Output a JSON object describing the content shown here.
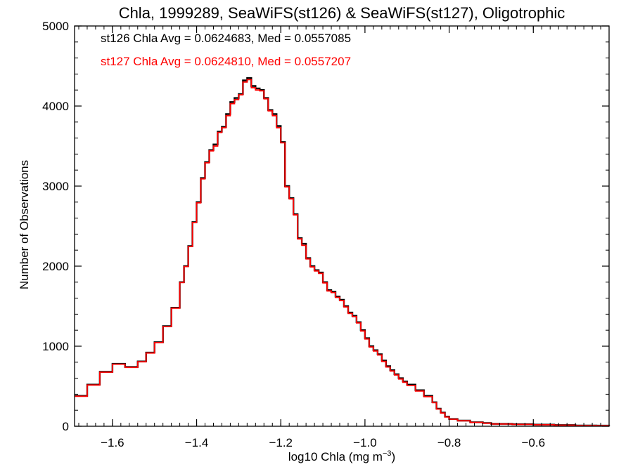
{
  "chart_data": {
    "type": "line",
    "title": "Chla, 1999289, SeaWiFS(st126) & SeaWiFS(st127), Oligotrophic",
    "xlabel_main": "log10 Chla (mg m",
    "xlabel_sup": "−3",
    "xlabel_close": ")",
    "ylabel": "Number of Observations",
    "xlim": [
      -1.69,
      -0.42
    ],
    "ylim": [
      0,
      5000
    ],
    "x_ticks": [
      -1.6,
      -1.4,
      -1.2,
      -1.0,
      -0.8,
      -0.6
    ],
    "x_tick_labels": [
      "−1.6",
      "−1.4",
      "−1.2",
      "−1.0",
      "−0.8",
      "−0.6"
    ],
    "y_ticks": [
      0,
      1000,
      2000,
      3000,
      4000,
      5000
    ],
    "y_tick_labels": [
      "0",
      "1000",
      "2000",
      "3000",
      "4000",
      "5000"
    ],
    "grid": false,
    "legend_placement": "top-left",
    "annotations": [
      {
        "text": "st126 Chla Avg = 0.0624683, Med = 0.0557085",
        "color": "#000000"
      },
      {
        "text": "st127 Chla Avg = 0.0624810, Med = 0.0557207",
        "color": "#ff0000"
      }
    ],
    "series": [
      {
        "color": "#000000",
        "x": [
          -1.69,
          -1.66,
          -1.63,
          -1.6,
          -1.57,
          -1.54,
          -1.52,
          -1.5,
          -1.48,
          -1.46,
          -1.44,
          -1.43,
          -1.42,
          -1.41,
          -1.4,
          -1.39,
          -1.38,
          -1.37,
          -1.36,
          -1.35,
          -1.34,
          -1.33,
          -1.32,
          -1.31,
          -1.3,
          -1.29,
          -1.28,
          -1.27,
          -1.26,
          -1.25,
          -1.24,
          -1.23,
          -1.22,
          -1.21,
          -1.2,
          -1.19,
          -1.18,
          -1.17,
          -1.16,
          -1.15,
          -1.14,
          -1.13,
          -1.12,
          -1.11,
          -1.1,
          -1.09,
          -1.08,
          -1.07,
          -1.06,
          -1.05,
          -1.04,
          -1.03,
          -1.02,
          -1.01,
          -1.0,
          -0.99,
          -0.98,
          -0.97,
          -0.96,
          -0.95,
          -0.94,
          -0.93,
          -0.92,
          -0.91,
          -0.9,
          -0.88,
          -0.86,
          -0.84,
          -0.83,
          -0.82,
          -0.81,
          -0.8,
          -0.78,
          -0.75,
          -0.72,
          -0.7,
          -0.65,
          -0.6,
          -0.55,
          -0.5,
          -0.45,
          -0.42
        ],
        "values": [
          380,
          520,
          680,
          780,
          740,
          810,
          920,
          1050,
          1250,
          1480,
          1800,
          2000,
          2250,
          2550,
          2800,
          3100,
          3300,
          3450,
          3520,
          3680,
          3740,
          3900,
          4050,
          4100,
          4150,
          4320,
          4350,
          4250,
          4220,
          4200,
          4100,
          3950,
          3900,
          3750,
          3550,
          3000,
          2850,
          2650,
          2350,
          2280,
          2100,
          2000,
          1950,
          1920,
          1800,
          1700,
          1680,
          1620,
          1580,
          1500,
          1420,
          1380,
          1300,
          1200,
          1100,
          1000,
          950,
          900,
          820,
          750,
          700,
          650,
          600,
          560,
          520,
          450,
          380,
          300,
          220,
          170,
          120,
          90,
          70,
          50,
          40,
          30,
          25,
          20,
          15,
          10,
          8,
          5
        ]
      },
      {
        "color": "#ff0000",
        "x": [
          -1.69,
          -1.66,
          -1.63,
          -1.6,
          -1.57,
          -1.54,
          -1.52,
          -1.5,
          -1.48,
          -1.46,
          -1.44,
          -1.43,
          -1.42,
          -1.41,
          -1.4,
          -1.39,
          -1.38,
          -1.37,
          -1.36,
          -1.35,
          -1.34,
          -1.33,
          -1.32,
          -1.31,
          -1.3,
          -1.29,
          -1.28,
          -1.27,
          -1.26,
          -1.25,
          -1.24,
          -1.23,
          -1.22,
          -1.21,
          -1.2,
          -1.19,
          -1.18,
          -1.17,
          -1.16,
          -1.15,
          -1.14,
          -1.13,
          -1.12,
          -1.11,
          -1.1,
          -1.09,
          -1.08,
          -1.07,
          -1.06,
          -1.05,
          -1.04,
          -1.03,
          -1.02,
          -1.01,
          -1.0,
          -0.99,
          -0.98,
          -0.97,
          -0.96,
          -0.95,
          -0.94,
          -0.93,
          -0.92,
          -0.91,
          -0.9,
          -0.88,
          -0.86,
          -0.84,
          -0.83,
          -0.82,
          -0.81,
          -0.8,
          -0.78,
          -0.75,
          -0.72,
          -0.7,
          -0.65,
          -0.6,
          -0.55,
          -0.5,
          -0.45,
          -0.42
        ],
        "values": [
          375,
          515,
          675,
          775,
          735,
          805,
          915,
          1045,
          1245,
          1475,
          1795,
          1995,
          2245,
          2545,
          2790,
          3090,
          3290,
          3440,
          3500,
          3670,
          3730,
          3880,
          4030,
          4080,
          4140,
          4300,
          4330,
          4230,
          4200,
          4190,
          4090,
          3940,
          3880,
          3730,
          3540,
          2990,
          2840,
          2640,
          2340,
          2260,
          2090,
          1990,
          1940,
          1910,
          1790,
          1690,
          1670,
          1610,
          1570,
          1490,
          1410,
          1370,
          1290,
          1190,
          1090,
          990,
          940,
          890,
          810,
          740,
          690,
          640,
          590,
          550,
          510,
          440,
          370,
          295,
          215,
          165,
          115,
          88,
          68,
          48,
          38,
          28,
          23,
          18,
          13,
          9,
          7,
          4
        ]
      }
    ]
  }
}
